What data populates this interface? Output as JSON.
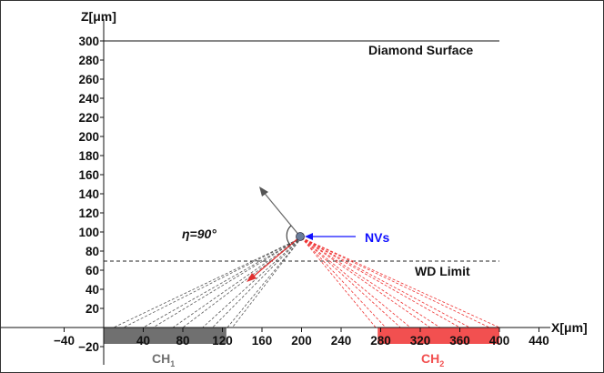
{
  "axes": {
    "z_label": "Z[μm]",
    "x_label": "X[μm]",
    "x_ticks": [
      -40,
      0,
      40,
      80,
      120,
      160,
      200,
      240,
      280,
      320,
      360,
      400,
      440
    ],
    "x_tick_labels": [
      "−40",
      "",
      "40",
      "80",
      "120",
      "160",
      "200",
      "240",
      "280",
      "320",
      "360",
      "400",
      "440"
    ],
    "z_ticks": [
      -20,
      20,
      40,
      60,
      80,
      100,
      120,
      140,
      160,
      180,
      200,
      220,
      240,
      260,
      280,
      300
    ],
    "z_tick_labels": [
      "−20",
      "20",
      "40",
      "60",
      "80",
      "100",
      "120",
      "140",
      "160",
      "180",
      "200",
      "220",
      "240",
      "260",
      "280",
      "300"
    ]
  },
  "labels": {
    "diamond_surface": "Diamond Surface",
    "wd_limit": "WD Limit",
    "nvs": "NVs",
    "eta": "η=90°",
    "ch1": "CH",
    "ch1_sub": "1",
    "ch2": "CH",
    "ch2_sub": "2"
  },
  "chart_data": {
    "type": "diagram",
    "surface_z": 300,
    "wd_limit_z": 70,
    "nv_point": [
      200,
      95
    ],
    "ch1_range": [
      0,
      120
    ],
    "ch2_range": [
      280,
      400
    ],
    "ch1_ray_ends_x": [
      10,
      20,
      40,
      50,
      70,
      80,
      100,
      110,
      125,
      130
    ],
    "ch2_ray_ends_x": [
      275,
      285,
      300,
      310,
      330,
      340,
      360,
      370,
      390,
      400
    ],
    "colors": {
      "ch1": "#707070",
      "ch2": "#f25050",
      "nvs": "#1010ff",
      "ray_gray": "#555555",
      "ray_red": "#ee3030"
    }
  }
}
